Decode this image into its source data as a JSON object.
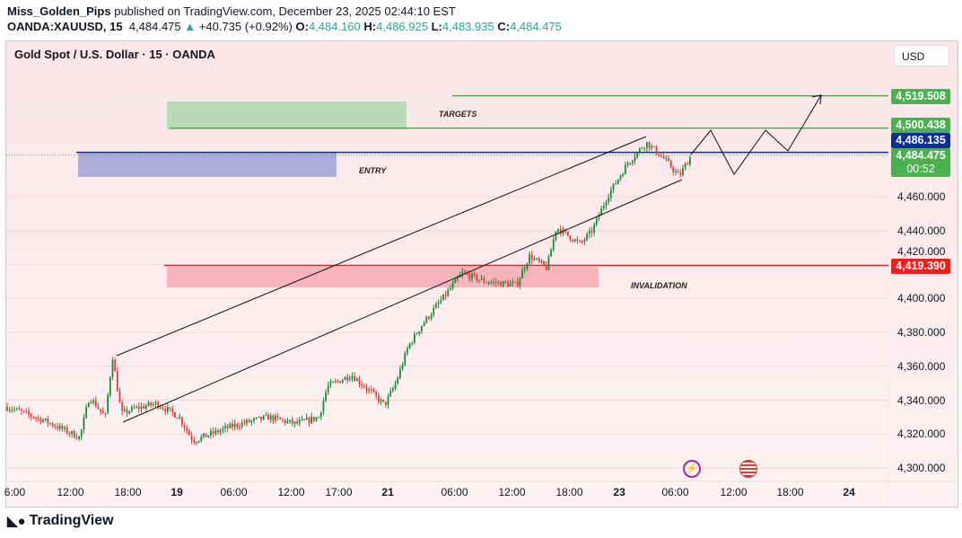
{
  "header": {
    "author": "Miss_Golden_Pips",
    "published": "published on TradingView.com, December 23, 2025 02:44:10 EST",
    "symbol": "OANDA:XAUUSD, 15",
    "last": "4,484.475",
    "change": "+40.735 (+0.92%)",
    "o_label": "O:",
    "o": "4,484.160",
    "h_label": "H:",
    "h": "4,486.925",
    "l_label": "L:",
    "l": "4,483.935",
    "c_label": "C:",
    "c": "4,484.475"
  },
  "chart_title": "Gold Spot / U.S. Dollar · 15 · OANDA",
  "currency_button": "USD",
  "footer_logo": "TradingView",
  "colors": {
    "up": "#26a69a",
    "candle_up": "#1b8a3a",
    "candle_down": "#e53935",
    "target": "#4caf50",
    "entry": "#0d2f8f",
    "invalidation": "#f21d1d",
    "background": "#fbe6e9"
  },
  "chart_data": {
    "type": "candlestick",
    "ylim": [
      4295,
      4545
    ],
    "y_ticks": [
      4300,
      4320,
      4340,
      4360,
      4380,
      4400,
      4420,
      4440,
      4460
    ],
    "y_tick_labels": [
      "4,300.000",
      "4,320.000",
      "4,340.000",
      "4,360.000",
      "4,380.000",
      "4,400.000",
      "4,420.000",
      "4,440.000",
      "4,460.000"
    ],
    "x_tick_labels": [
      "6:00",
      "12:00",
      "18:00",
      "19",
      "06:00",
      "12:00",
      "17:00",
      "21",
      "06:00",
      "12:00",
      "18:00",
      "23",
      "06:00",
      "12:00",
      "18:00",
      "24"
    ],
    "price_path": [
      [
        "18 05:00",
        4336
      ],
      [
        "18 09:00",
        4328
      ],
      [
        "18 12:50",
        4318
      ],
      [
        "18 13:50",
        4342
      ],
      [
        "18 15:30",
        4330
      ],
      [
        "18 16:15",
        4366
      ],
      [
        "18 17:10",
        4332
      ],
      [
        "18 18:40",
        4335
      ],
      [
        "18 21:30",
        4338
      ],
      [
        "19 00:15",
        4330
      ],
      [
        "19 01:40",
        4316
      ],
      [
        "19 03:30",
        4320
      ],
      [
        "19 05:50",
        4325
      ],
      [
        "19 09:30",
        4330
      ],
      [
        "19 12:20",
        4326
      ],
      [
        "19 14:45",
        4330
      ],
      [
        "19 15:40",
        4348
      ],
      [
        "21 19:00",
        4355
      ],
      [
        "21 21:00",
        4345
      ],
      [
        "21 22:30",
        4337
      ],
      [
        "21 23:40",
        4350
      ],
      [
        "22 01:00",
        4372
      ],
      [
        "22 02:30",
        4385
      ],
      [
        "22 04:20",
        4398
      ],
      [
        "22 06:40",
        4415
      ],
      [
        "22 09:00",
        4410
      ],
      [
        "22 12:20",
        4408
      ],
      [
        "22 13:40",
        4425
      ],
      [
        "22 15:30",
        4418
      ],
      [
        "22 16:30",
        4442
      ],
      [
        "22 19:10",
        4432
      ],
      [
        "22 20:40",
        4440
      ],
      [
        "22 22:30",
        4460
      ],
      [
        "23 00:55",
        4480
      ],
      [
        "23 02:50",
        4492
      ],
      [
        "23 04:45",
        4482
      ],
      [
        "23 06:15",
        4472
      ],
      [
        "23 07:30",
        4484.475
      ]
    ],
    "levels": [
      {
        "name": "target-2",
        "price": 4519.508,
        "label": "4,519.508"
      },
      {
        "name": "target-1",
        "price": 4500.438,
        "label": "4,500.438"
      },
      {
        "name": "entry",
        "price": 4486.135,
        "label": "4,486.135"
      },
      {
        "name": "invalidation",
        "price": 4419.39,
        "label": "4,419.390"
      }
    ],
    "current_price": {
      "label": "4,484.475",
      "countdown": "00:52"
    },
    "annotations": {
      "targets": "TARGETS",
      "entry": "ENTRY",
      "invalidation": "INVALIDATION"
    }
  }
}
